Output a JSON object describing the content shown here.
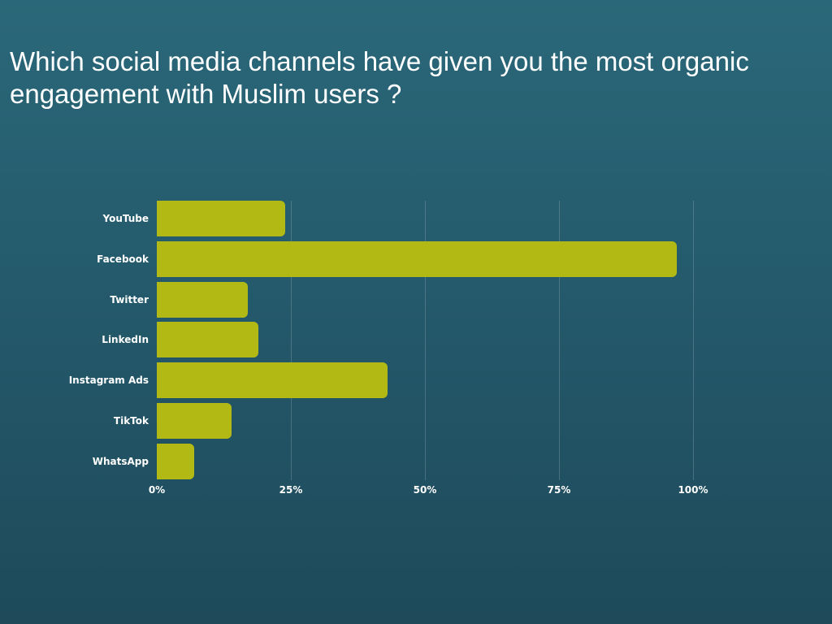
{
  "title": "Which social media channels have given you the most organic engagement with Muslim users ?",
  "colors": {
    "background_top": "#2a6879",
    "background_bottom": "#1e4a5a",
    "bar": "#b3b914",
    "text": "#ffffff"
  },
  "chart_data": {
    "type": "bar",
    "orientation": "horizontal",
    "title": "Which social media channels have given you the most organic engagement with Muslim users ?",
    "xlabel": "",
    "ylabel": "",
    "categories": [
      "YouTube",
      "Facebook",
      "Twitter",
      "LinkedIn",
      "Instagram Ads",
      "TikTok",
      "WhatsApp"
    ],
    "values": [
      24,
      97,
      17,
      19,
      43,
      14,
      7
    ],
    "unit": "%",
    "xlim": [
      0,
      100
    ],
    "x_ticks": [
      "0%",
      "25%",
      "50%",
      "75%",
      "100%"
    ],
    "grid": true,
    "legend": null
  }
}
